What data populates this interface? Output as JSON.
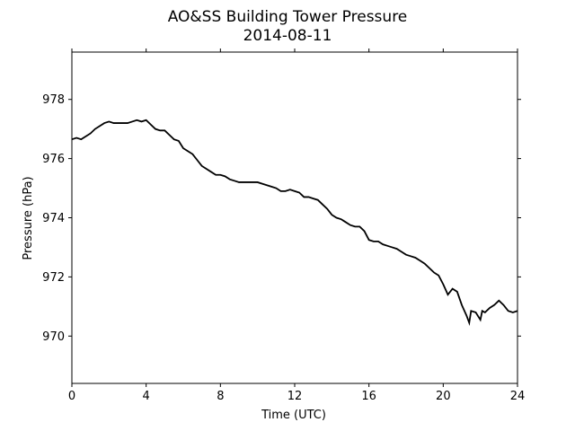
{
  "chart_data": {
    "type": "line",
    "title": "AO&SS Building Tower Pressure",
    "subtitle": "2014-08-11",
    "xlabel": "Time (UTC)",
    "ylabel": "Pressure (hPa)",
    "xlim": [
      0,
      24
    ],
    "ylim": [
      968.4,
      979.6
    ],
    "xticks": [
      0,
      4,
      8,
      12,
      16,
      20,
      24
    ],
    "yticks": [
      970,
      972,
      974,
      976,
      978
    ],
    "grid": false,
    "line_color": "#000000",
    "series": [
      {
        "x": [
          0,
          0.25,
          0.5,
          0.75,
          1.0,
          1.25,
          1.5,
          1.75,
          2.0,
          2.25,
          2.5,
          2.75,
          3.0,
          3.25,
          3.5,
          3.75,
          4.0,
          4.25,
          4.5,
          4.75,
          5.0,
          5.25,
          5.5,
          5.75,
          6.0,
          6.25,
          6.5,
          6.75,
          7.0,
          7.25,
          7.5,
          7.75,
          8.0,
          8.25,
          8.5,
          8.75,
          9.0,
          9.25,
          9.5,
          9.75,
          10.0,
          10.25,
          10.5,
          10.75,
          11.0,
          11.25,
          11.5,
          11.75,
          12.0,
          12.25,
          12.5,
          12.75,
          13.0,
          13.25,
          13.5,
          13.75,
          14.0,
          14.25,
          14.5,
          14.75,
          15.0,
          15.25,
          15.5,
          15.75,
          16.0,
          16.25,
          16.5,
          16.75,
          17.0,
          17.25,
          17.5,
          17.75,
          18.0,
          18.25,
          18.5,
          18.75,
          19.0,
          19.25,
          19.5,
          19.75,
          20.0,
          20.25,
          20.5,
          20.75,
          21.0,
          21.25,
          21.4,
          21.5,
          21.75,
          22.0,
          22.1,
          22.25,
          22.5,
          22.75,
          23.0,
          23.25,
          23.5,
          23.75,
          24.0
        ],
        "y": [
          976.65,
          976.7,
          976.65,
          976.75,
          976.85,
          977.0,
          977.1,
          977.2,
          977.25,
          977.2,
          977.2,
          977.2,
          977.2,
          977.25,
          977.3,
          977.25,
          977.3,
          977.15,
          977.0,
          976.95,
          976.95,
          976.8,
          976.65,
          976.6,
          976.35,
          976.25,
          976.15,
          975.95,
          975.75,
          975.65,
          975.55,
          975.45,
          975.45,
          975.4,
          975.3,
          975.25,
          975.2,
          975.2,
          975.2,
          975.2,
          975.2,
          975.15,
          975.1,
          975.05,
          975.0,
          974.9,
          974.9,
          974.95,
          974.9,
          974.85,
          974.7,
          974.7,
          974.65,
          974.6,
          974.45,
          974.3,
          974.1,
          974.0,
          973.95,
          973.85,
          973.75,
          973.7,
          973.7,
          973.55,
          973.25,
          973.2,
          973.2,
          973.1,
          973.05,
          973.0,
          972.95,
          972.85,
          972.75,
          972.7,
          972.65,
          972.55,
          972.45,
          972.3,
          972.15,
          972.05,
          971.75,
          971.4,
          971.6,
          971.5,
          971.05,
          970.7,
          970.45,
          970.85,
          970.8,
          970.55,
          970.85,
          970.8,
          970.95,
          971.05,
          971.2,
          971.05,
          970.85,
          970.8,
          970.85
        ]
      }
    ]
  }
}
